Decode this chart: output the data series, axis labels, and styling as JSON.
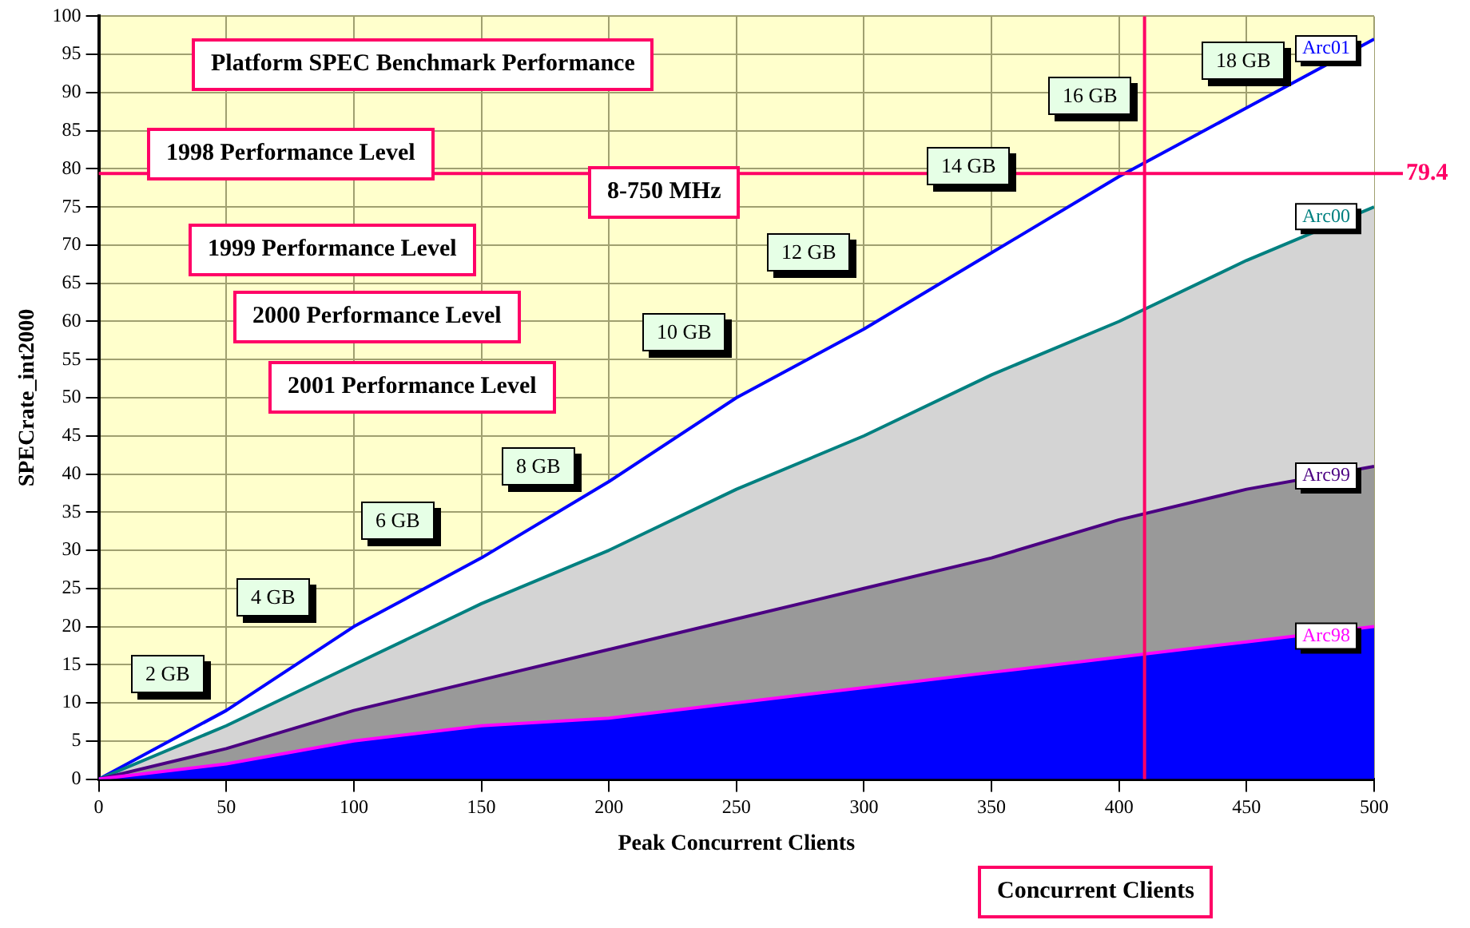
{
  "chart_data": {
    "type": "area",
    "xlabel": "Peak Concurrent Clients",
    "ylabel": "SPECrate_int2000",
    "x": [
      0,
      50,
      100,
      150,
      200,
      250,
      300,
      350,
      400,
      450,
      500
    ],
    "series": [
      {
        "name": "Arc98",
        "color": "#ff00ff",
        "values": [
          0,
          2,
          5,
          7,
          8,
          10,
          12,
          14,
          16,
          18,
          20
        ]
      },
      {
        "name": "Arc99",
        "color": "#4b0082",
        "values": [
          0,
          4,
          9,
          13,
          17,
          21,
          25,
          29,
          34,
          38,
          41
        ]
      },
      {
        "name": "Arc00",
        "color": "#008080",
        "values": [
          0,
          7,
          15,
          23,
          30,
          38,
          45,
          53,
          60,
          68,
          75
        ]
      },
      {
        "name": "Arc01",
        "color": "#0000ff",
        "values": [
          0,
          9,
          20,
          29,
          39,
          50,
          59,
          69,
          79,
          88,
          97
        ]
      }
    ],
    "xlim": [
      0,
      500
    ],
    "xticks": [
      0,
      50,
      100,
      150,
      200,
      250,
      300,
      350,
      400,
      450,
      500
    ],
    "ylim": [
      0,
      100
    ],
    "yticks": [
      0,
      5,
      10,
      15,
      20,
      25,
      30,
      35,
      40,
      45,
      50,
      55,
      60,
      65,
      70,
      75,
      80,
      85,
      90,
      95,
      100
    ],
    "grid": true,
    "legend": false,
    "ref_lines": [
      {
        "axis": "y",
        "value": 79.4,
        "label": "79.4",
        "color": "#ff0066"
      },
      {
        "axis": "x",
        "value": 410,
        "color": "#ff0066"
      }
    ],
    "annotations": [
      "Platform SPEC Benchmark Performance",
      "1998 Performance Level",
      "1999 Performance Level",
      "2000 Performance Level",
      "2001 Performance Level",
      "8-750 MHz",
      "Concurrent Clients",
      "2 GB",
      "4 GB",
      "6 GB",
      "8 GB",
      "10 GB",
      "12 GB",
      "14 GB",
      "16 GB",
      "18 GB"
    ]
  }
}
